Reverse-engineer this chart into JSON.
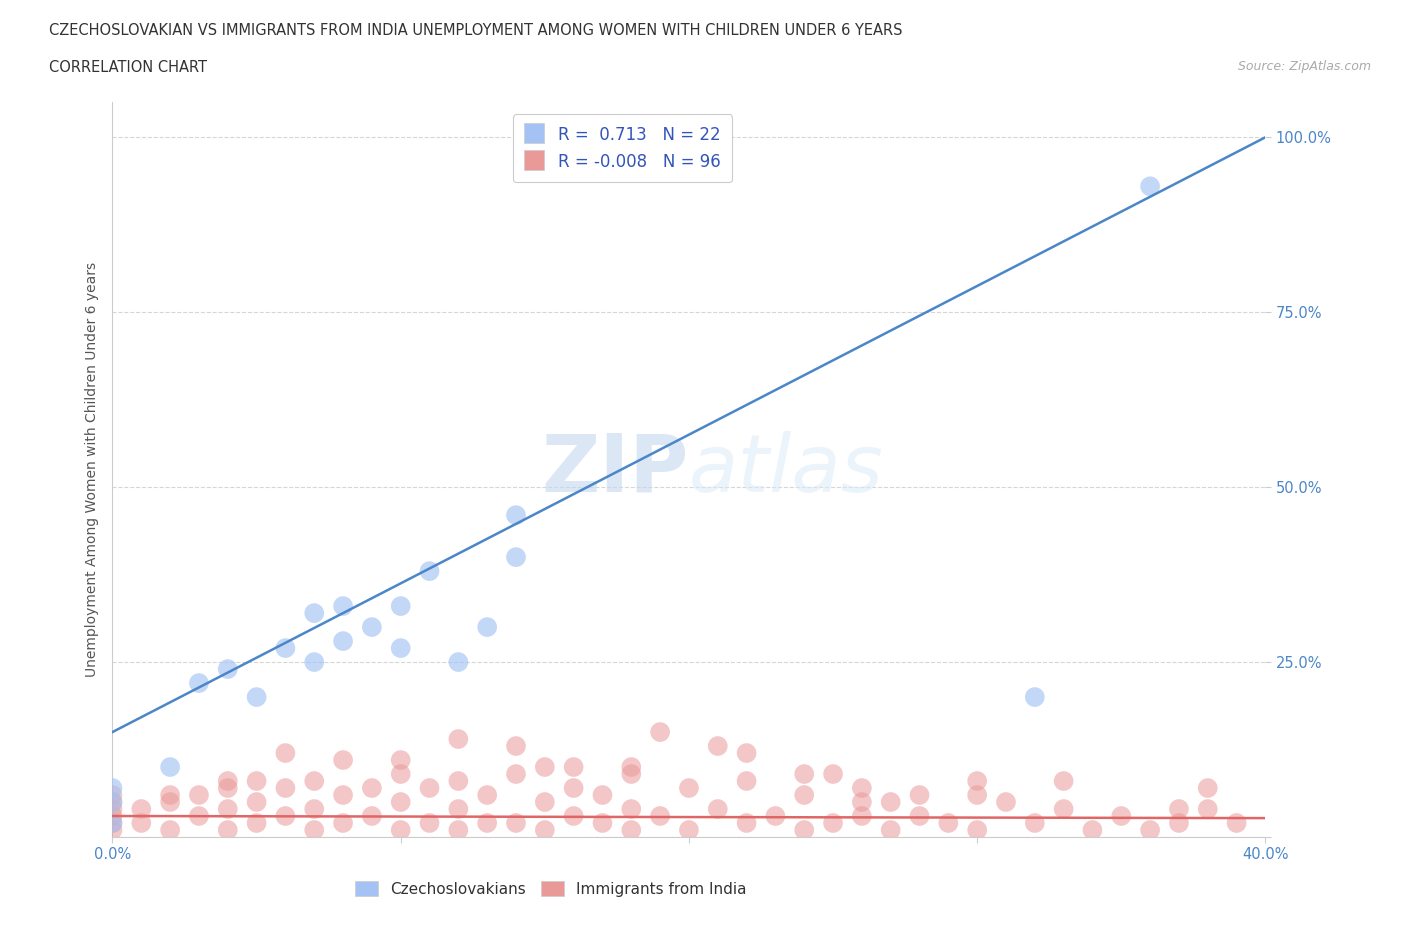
{
  "title_line1": "CZECHOSLOVAKIAN VS IMMIGRANTS FROM INDIA UNEMPLOYMENT AMONG WOMEN WITH CHILDREN UNDER 6 YEARS",
  "title_line2": "CORRELATION CHART",
  "source_text": "Source: ZipAtlas.com",
  "ylabel": "Unemployment Among Women with Children Under 6 years",
  "xlim": [
    0.0,
    0.4
  ],
  "ylim": [
    0.0,
    1.05
  ],
  "r_czech": 0.713,
  "n_czech": 22,
  "r_india": -0.008,
  "n_india": 96,
  "czech_color": "#a4c2f4",
  "india_color": "#ea9999",
  "czech_line_color": "#4a86c8",
  "india_line_color": "#e06666",
  "watermark_zip": "ZIP",
  "watermark_atlas": "atlas",
  "czech_points_x": [
    0.0,
    0.0,
    0.0,
    0.02,
    0.03,
    0.04,
    0.05,
    0.06,
    0.07,
    0.07,
    0.08,
    0.08,
    0.09,
    0.1,
    0.1,
    0.11,
    0.12,
    0.13,
    0.14,
    0.14,
    0.32,
    0.36
  ],
  "czech_points_y": [
    0.02,
    0.05,
    0.07,
    0.1,
    0.22,
    0.24,
    0.2,
    0.27,
    0.25,
    0.32,
    0.28,
    0.33,
    0.3,
    0.27,
    0.33,
    0.38,
    0.25,
    0.3,
    0.4,
    0.46,
    0.2,
    0.93
  ],
  "india_points_x": [
    0.0,
    0.0,
    0.0,
    0.0,
    0.0,
    0.0,
    0.01,
    0.01,
    0.02,
    0.02,
    0.03,
    0.03,
    0.04,
    0.04,
    0.04,
    0.05,
    0.05,
    0.05,
    0.06,
    0.06,
    0.07,
    0.07,
    0.07,
    0.08,
    0.08,
    0.09,
    0.09,
    0.1,
    0.1,
    0.1,
    0.11,
    0.11,
    0.12,
    0.12,
    0.12,
    0.13,
    0.13,
    0.14,
    0.14,
    0.15,
    0.15,
    0.15,
    0.16,
    0.16,
    0.17,
    0.17,
    0.18,
    0.18,
    0.18,
    0.19,
    0.2,
    0.2,
    0.21,
    0.22,
    0.22,
    0.23,
    0.24,
    0.24,
    0.25,
    0.25,
    0.26,
    0.26,
    0.27,
    0.27,
    0.28,
    0.29,
    0.3,
    0.3,
    0.32,
    0.33,
    0.34,
    0.35,
    0.36,
    0.37,
    0.38,
    0.38,
    0.39,
    0.18,
    0.22,
    0.26,
    0.3,
    0.12,
    0.08,
    0.14,
    0.19,
    0.24,
    0.06,
    0.16,
    0.21,
    0.28,
    0.33,
    0.37,
    0.1,
    0.04,
    0.02,
    0.31
  ],
  "india_points_y": [
    0.01,
    0.02,
    0.03,
    0.04,
    0.05,
    0.06,
    0.02,
    0.04,
    0.01,
    0.05,
    0.03,
    0.06,
    0.01,
    0.04,
    0.07,
    0.02,
    0.05,
    0.08,
    0.03,
    0.07,
    0.01,
    0.04,
    0.08,
    0.02,
    0.06,
    0.03,
    0.07,
    0.01,
    0.05,
    0.09,
    0.02,
    0.07,
    0.01,
    0.04,
    0.08,
    0.02,
    0.06,
    0.02,
    0.09,
    0.01,
    0.05,
    0.1,
    0.03,
    0.07,
    0.02,
    0.06,
    0.01,
    0.04,
    0.09,
    0.03,
    0.01,
    0.07,
    0.04,
    0.02,
    0.08,
    0.03,
    0.01,
    0.06,
    0.02,
    0.09,
    0.03,
    0.07,
    0.01,
    0.05,
    0.03,
    0.02,
    0.01,
    0.06,
    0.02,
    0.04,
    0.01,
    0.03,
    0.01,
    0.02,
    0.04,
    0.07,
    0.02,
    0.1,
    0.12,
    0.05,
    0.08,
    0.14,
    0.11,
    0.13,
    0.15,
    0.09,
    0.12,
    0.1,
    0.13,
    0.06,
    0.08,
    0.04,
    0.11,
    0.08,
    0.06,
    0.05
  ]
}
